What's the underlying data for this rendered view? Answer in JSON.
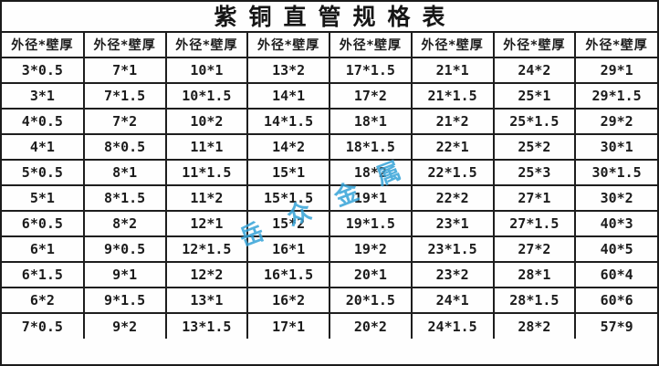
{
  "title": "紫铜直管规格表",
  "table": {
    "headers": [
      "外径*壁厚",
      "外径*壁厚",
      "外径*壁厚",
      "外径*壁厚",
      "外径*壁厚",
      "外径*壁厚",
      "外径*壁厚",
      "外径*壁厚"
    ],
    "rows": [
      [
        "3*0.5",
        "7*1",
        "10*1",
        "13*2",
        "17*1.5",
        "21*1",
        "24*2",
        "29*1"
      ],
      [
        "3*1",
        "7*1.5",
        "10*1.5",
        "14*1",
        "17*2",
        "21*1.5",
        "25*1",
        "29*1.5"
      ],
      [
        "4*0.5",
        "7*2",
        "10*2",
        "14*1.5",
        "18*1",
        "21*2",
        "25*1.5",
        "29*2"
      ],
      [
        "4*1",
        "8*0.5",
        "11*1",
        "14*2",
        "18*1.5",
        "22*1",
        "25*2",
        "30*1"
      ],
      [
        "5*0.5",
        "8*1",
        "11*1.5",
        "15*1",
        "18*2",
        "22*1.5",
        "25*3",
        "30*1.5"
      ],
      [
        "5*1",
        "8*1.5",
        "11*2",
        "15*1.5",
        "19*1",
        "22*2",
        "27*1",
        "30*2"
      ],
      [
        "6*0.5",
        "8*2",
        "12*1",
        "15*2",
        "19*1.5",
        "23*1",
        "27*1.5",
        "40*3"
      ],
      [
        "6*1",
        "9*0.5",
        "12*1.5",
        "16*1",
        "19*2",
        "23*1.5",
        "27*2",
        "40*5"
      ],
      [
        "6*1.5",
        "9*1",
        "12*2",
        "16*1.5",
        "20*1",
        "23*2",
        "28*1",
        "60*4"
      ],
      [
        "6*2",
        "9*1.5",
        "13*1",
        "16*2",
        "20*1.5",
        "24*1",
        "28*1.5",
        "60*6"
      ],
      [
        "7*0.5",
        "9*2",
        "13*1.5",
        "17*1",
        "20*2",
        "24*1.5",
        "28*2",
        "57*9"
      ]
    ]
  },
  "watermark": {
    "text": "岳众金属",
    "chars": [
      "岳",
      "众",
      "金",
      "属"
    ],
    "color": "#35a3d8"
  },
  "colors": {
    "border": "#1b1b1b",
    "text": "#1c1c1c",
    "background": "#ffffff",
    "watermark_blue": "#35a3d8"
  }
}
